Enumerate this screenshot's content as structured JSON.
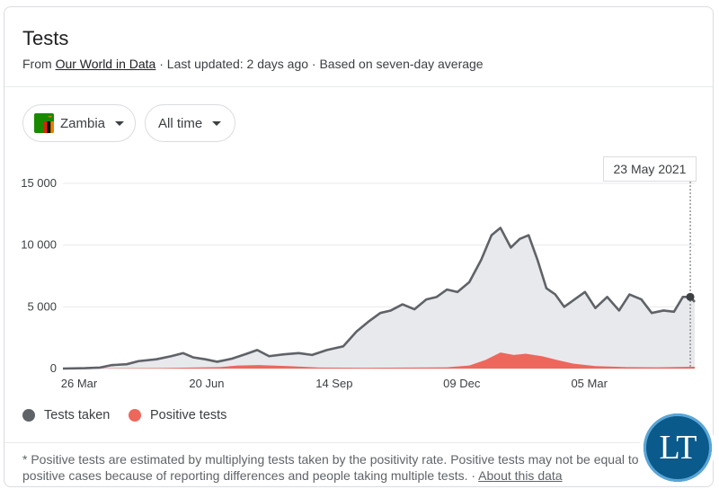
{
  "header": {
    "title": "Tests",
    "from_prefix": "From",
    "source_link": "Our World in Data",
    "meta": "· Last updated: 2 days ago · Based on seven-day average"
  },
  "filters": {
    "country": "Zambia",
    "range": "All time"
  },
  "tooltip": {
    "date": "23 May 2021"
  },
  "legend": {
    "items": [
      {
        "label": "Tests taken",
        "color": "#5f6368"
      },
      {
        "label": "Positive tests",
        "color": "#ee675c"
      }
    ]
  },
  "footnote": {
    "text": "* Positive tests are estimated by multiplying tests taken by the positivity rate. Positive tests may not be equal to positive cases because of reporting differences and people taking multiple tests.  ·",
    "about_link": "About this data"
  },
  "logo": {
    "text": "LT"
  },
  "chart_data": {
    "type": "area",
    "ylim": [
      0,
      15000
    ],
    "yticks": [
      "15 000",
      "10 000",
      "5 000",
      "0"
    ],
    "ytick_values": [
      15000,
      10000,
      5000,
      0
    ],
    "xticks": [
      "26 Mar",
      "20 Jun",
      "14 Sep",
      "09 Dec",
      "05 Mar"
    ],
    "x_start": "2020-03-26",
    "x_end": "2021-05-26",
    "colors": {
      "tests": "#5f6368",
      "tests_fill": "#e8e9ec",
      "positive": "#ee675c"
    },
    "series": [
      {
        "name": "Tests taken",
        "points": [
          [
            "2020-03-26",
            0
          ],
          [
            "2020-04-10",
            30
          ],
          [
            "2020-04-20",
            80
          ],
          [
            "2020-04-28",
            280
          ],
          [
            "2020-05-08",
            350
          ],
          [
            "2020-05-16",
            600
          ],
          [
            "2020-05-28",
            750
          ],
          [
            "2020-06-07",
            1000
          ],
          [
            "2020-06-15",
            1250
          ],
          [
            "2020-06-22",
            900
          ],
          [
            "2020-06-30",
            750
          ],
          [
            "2020-07-08",
            550
          ],
          [
            "2020-07-18",
            800
          ],
          [
            "2020-07-28",
            1200
          ],
          [
            "2020-08-04",
            1500
          ],
          [
            "2020-08-12",
            1000
          ],
          [
            "2020-08-22",
            1150
          ],
          [
            "2020-09-01",
            1250
          ],
          [
            "2020-09-10",
            1100
          ],
          [
            "2020-09-20",
            1500
          ],
          [
            "2020-10-01",
            1800
          ],
          [
            "2020-10-10",
            3000
          ],
          [
            "2020-10-18",
            3800
          ],
          [
            "2020-10-26",
            4500
          ],
          [
            "2020-11-02",
            4700
          ],
          [
            "2020-11-10",
            5200
          ],
          [
            "2020-11-18",
            4800
          ],
          [
            "2020-11-26",
            5600
          ],
          [
            "2020-12-03",
            5800
          ],
          [
            "2020-12-10",
            6400
          ],
          [
            "2020-12-17",
            6200
          ],
          [
            "2020-12-25",
            7000
          ],
          [
            "2021-01-02",
            8800
          ],
          [
            "2021-01-09",
            10800
          ],
          [
            "2021-01-15",
            11400
          ],
          [
            "2021-01-22",
            9800
          ],
          [
            "2021-01-28",
            10500
          ],
          [
            "2021-02-03",
            10800
          ],
          [
            "2021-02-09",
            8800
          ],
          [
            "2021-02-15",
            6500
          ],
          [
            "2021-02-21",
            6000
          ],
          [
            "2021-02-27",
            5000
          ],
          [
            "2021-03-06",
            5600
          ],
          [
            "2021-03-13",
            6200
          ],
          [
            "2021-03-20",
            4900
          ],
          [
            "2021-03-28",
            5800
          ],
          [
            "2021-04-05",
            4700
          ],
          [
            "2021-04-12",
            6000
          ],
          [
            "2021-04-20",
            5600
          ],
          [
            "2021-04-27",
            4500
          ],
          [
            "2021-05-05",
            4700
          ],
          [
            "2021-05-12",
            4600
          ],
          [
            "2021-05-18",
            5800
          ],
          [
            "2021-05-23",
            5800
          ],
          [
            "2021-05-26",
            5400
          ]
        ]
      },
      {
        "name": "Positive tests",
        "points": [
          [
            "2020-03-26",
            0
          ],
          [
            "2020-06-01",
            50
          ],
          [
            "2020-07-10",
            120
          ],
          [
            "2020-07-22",
            250
          ],
          [
            "2020-08-05",
            280
          ],
          [
            "2020-08-25",
            200
          ],
          [
            "2020-09-15",
            80
          ],
          [
            "2020-10-15",
            60
          ],
          [
            "2020-11-15",
            80
          ],
          [
            "2020-12-10",
            100
          ],
          [
            "2020-12-25",
            250
          ],
          [
            "2021-01-05",
            700
          ],
          [
            "2021-01-15",
            1300
          ],
          [
            "2021-01-24",
            1100
          ],
          [
            "2021-02-01",
            1200
          ],
          [
            "2021-02-12",
            1000
          ],
          [
            "2021-02-22",
            700
          ],
          [
            "2021-03-05",
            400
          ],
          [
            "2021-03-20",
            200
          ],
          [
            "2021-04-10",
            120
          ],
          [
            "2021-05-01",
            100
          ],
          [
            "2021-05-26",
            150
          ]
        ]
      }
    ]
  }
}
